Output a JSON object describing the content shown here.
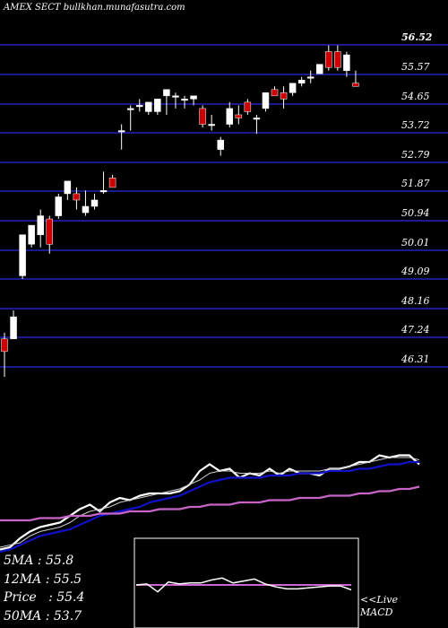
{
  "header": {
    "title": "AMEX  SECT bullkhan.munafasutra.com"
  },
  "price_chart": {
    "tick_labels": [
      "56.52",
      "55.57",
      "54.65",
      "53.72",
      "52.79",
      "51.87",
      "50.94",
      "50.01",
      "49.09",
      "48.16",
      "47.24",
      "46.31"
    ],
    "grid_color": "#1a1a8c",
    "up_color": "#ffffff",
    "down_color": "#cc0000"
  },
  "stats": {
    "ma5": "5MA : 55.8",
    "ma12": "12MA : 55.5",
    "price": "Price   : 55.4",
    "ma50": "50MA : 53.7"
  },
  "macd": {
    "label_line1": "<<Live",
    "label_line2": "MACD"
  },
  "chart_data": [
    {
      "type": "candlestick",
      "title": "AMEX  SECT bullkhan.munafasutra.com",
      "y_ticks": [
        56.52,
        55.57,
        54.65,
        53.72,
        52.79,
        51.87,
        50.94,
        50.01,
        49.09,
        48.16,
        47.24,
        46.31
      ],
      "ylim": [
        46.0,
        56.8
      ],
      "grid": true,
      "candles": [
        {
          "o": 47.2,
          "h": 47.4,
          "l": 46.0,
          "c": 46.8
        },
        {
          "o": 47.2,
          "h": 48.1,
          "l": 47.2,
          "c": 47.9
        },
        {
          "o": 49.2,
          "h": 50.5,
          "l": 49.1,
          "c": 50.5
        },
        {
          "o": 50.2,
          "h": 50.8,
          "l": 50.1,
          "c": 50.8
        },
        {
          "o": 50.5,
          "h": 51.3,
          "l": 50.1,
          "c": 51.1
        },
        {
          "o": 51.0,
          "h": 51.1,
          "l": 49.9,
          "c": 50.2
        },
        {
          "o": 51.1,
          "h": 51.8,
          "l": 51.0,
          "c": 51.7
        },
        {
          "o": 51.8,
          "h": 52.2,
          "l": 51.6,
          "c": 52.2
        },
        {
          "o": 51.8,
          "h": 52.0,
          "l": 51.3,
          "c": 51.6
        },
        {
          "o": 51.2,
          "h": 51.9,
          "l": 51.1,
          "c": 51.4
        },
        {
          "o": 51.4,
          "h": 51.8,
          "l": 51.3,
          "c": 51.6
        },
        {
          "o": 51.9,
          "h": 52.5,
          "l": 51.8,
          "c": 51.9
        },
        {
          "o": 52.3,
          "h": 52.4,
          "l": 52.0,
          "c": 52.0
        },
        {
          "o": 53.8,
          "h": 54.0,
          "l": 53.2,
          "c": 53.8
        },
        {
          "o": 54.5,
          "h": 54.6,
          "l": 53.8,
          "c": 54.5
        },
        {
          "o": 54.6,
          "h": 54.8,
          "l": 54.4,
          "c": 54.6
        },
        {
          "o": 54.4,
          "h": 54.7,
          "l": 54.3,
          "c": 54.7
        },
        {
          "o": 54.4,
          "h": 54.8,
          "l": 54.3,
          "c": 54.8
        },
        {
          "o": 54.9,
          "h": 55.1,
          "l": 54.3,
          "c": 55.1
        },
        {
          "o": 54.9,
          "h": 55.0,
          "l": 54.5,
          "c": 54.9
        },
        {
          "o": 54.8,
          "h": 54.9,
          "l": 54.5,
          "c": 54.8
        },
        {
          "o": 54.8,
          "h": 54.9,
          "l": 54.6,
          "c": 54.9
        },
        {
          "o": 54.5,
          "h": 54.6,
          "l": 53.9,
          "c": 54.0
        },
        {
          "o": 54.0,
          "h": 54.3,
          "l": 53.8,
          "c": 54.0
        },
        {
          "o": 53.2,
          "h": 53.6,
          "l": 53.0,
          "c": 53.5
        },
        {
          "o": 54.0,
          "h": 54.7,
          "l": 53.9,
          "c": 54.5
        },
        {
          "o": 54.3,
          "h": 54.6,
          "l": 54.0,
          "c": 54.2
        },
        {
          "o": 54.7,
          "h": 54.8,
          "l": 54.3,
          "c": 54.4
        },
        {
          "o": 54.2,
          "h": 54.3,
          "l": 53.7,
          "c": 54.2
        },
        {
          "o": 54.5,
          "h": 55.0,
          "l": 54.4,
          "c": 55.0
        },
        {
          "o": 55.1,
          "h": 55.2,
          "l": 54.9,
          "c": 54.9
        },
        {
          "o": 55.0,
          "h": 55.2,
          "l": 54.5,
          "c": 54.8
        },
        {
          "o": 55.0,
          "h": 55.3,
          "l": 54.9,
          "c": 55.3
        },
        {
          "o": 55.3,
          "h": 55.5,
          "l": 55.2,
          "c": 55.4
        },
        {
          "o": 55.5,
          "h": 55.7,
          "l": 55.3,
          "c": 55.5
        },
        {
          "o": 55.6,
          "h": 55.9,
          "l": 55.6,
          "c": 55.9
        },
        {
          "o": 56.3,
          "h": 56.5,
          "l": 55.7,
          "c": 55.8
        },
        {
          "o": 56.3,
          "h": 56.5,
          "l": 55.7,
          "c": 55.8
        },
        {
          "o": 55.7,
          "h": 56.3,
          "l": 55.5,
          "c": 56.2
        },
        {
          "o": 55.3,
          "h": 55.7,
          "l": 55.2,
          "c": 55.2
        }
      ]
    },
    {
      "type": "line",
      "series": [
        {
          "color": "#ffffff",
          "values": [
            0.1,
            0.2,
            0.6,
            0.9,
            1.1,
            1.2,
            1.3,
            1.6,
            1.9,
            2.1,
            1.8,
            2.2,
            2.4,
            2.3,
            2.5,
            2.6,
            2.6,
            2.6,
            2.7,
            3.0,
            3.6,
            3.9,
            3.6,
            3.7,
            3.3,
            3.5,
            3.4,
            3.7,
            3.4,
            3.7,
            3.5,
            3.5,
            3.4,
            3.7,
            3.7,
            3.8,
            4.0,
            4.0,
            4.3,
            4.2,
            4.3,
            4.3,
            3.9
          ]
        },
        {
          "color": "#cccccc",
          "values": [
            0.2,
            0.3,
            0.4,
            0.7,
            0.9,
            1.0,
            1.1,
            1.3,
            1.6,
            1.8,
            1.9,
            2.0,
            2.2,
            2.3,
            2.4,
            2.5,
            2.6,
            2.7,
            2.8,
            3.0,
            3.2,
            3.5,
            3.6,
            3.6,
            3.5,
            3.5,
            3.5,
            3.6,
            3.5,
            3.6,
            3.6,
            3.6,
            3.6,
            3.7,
            3.7,
            3.8,
            3.9,
            4.0,
            4.1,
            4.2,
            4.2,
            4.2,
            4.1
          ]
        },
        {
          "color": "#1010c8",
          "values": [
            0.0,
            0.1,
            0.3,
            0.5,
            0.7,
            0.8,
            0.9,
            1.0,
            1.2,
            1.4,
            1.6,
            1.7,
            1.8,
            1.9,
            2.0,
            2.2,
            2.3,
            2.4,
            2.5,
            2.7,
            2.9,
            3.1,
            3.2,
            3.3,
            3.3,
            3.3,
            3.3,
            3.4,
            3.4,
            3.4,
            3.5,
            3.5,
            3.5,
            3.6,
            3.6,
            3.6,
            3.7,
            3.7,
            3.8,
            3.9,
            3.9,
            4.0,
            4.0
          ]
        },
        {
          "color": "#c864c8",
          "values": [
            1.4,
            1.4,
            1.4,
            1.4,
            1.5,
            1.5,
            1.5,
            1.6,
            1.6,
            1.6,
            1.7,
            1.7,
            1.7,
            1.8,
            1.8,
            1.8,
            1.9,
            1.9,
            1.9,
            2.0,
            2.0,
            2.1,
            2.1,
            2.1,
            2.2,
            2.2,
            2.2,
            2.3,
            2.3,
            2.3,
            2.4,
            2.4,
            2.4,
            2.5,
            2.5,
            2.5,
            2.6,
            2.6,
            2.7,
            2.7,
            2.8,
            2.8,
            2.9
          ]
        }
      ],
      "ylim": [
        0,
        5
      ]
    },
    {
      "type": "line",
      "title": "MACD",
      "series": [
        {
          "color": "#cc66cc",
          "values": [
            0,
            0,
            0,
            0,
            0,
            0,
            0,
            0,
            0,
            0,
            0,
            0,
            0,
            0,
            0,
            0,
            0,
            0,
            0,
            0,
            0
          ]
        },
        {
          "color": "#ffffff",
          "values": [
            0.0,
            0.05,
            -0.35,
            0.15,
            0.05,
            0.1,
            0.1,
            0.25,
            0.35,
            0.1,
            0.2,
            0.3,
            0.05,
            -0.1,
            -0.2,
            -0.2,
            -0.15,
            -0.1,
            -0.05,
            -0.05,
            -0.25
          ]
        }
      ],
      "ylim": [
        -1,
        1
      ]
    }
  ]
}
